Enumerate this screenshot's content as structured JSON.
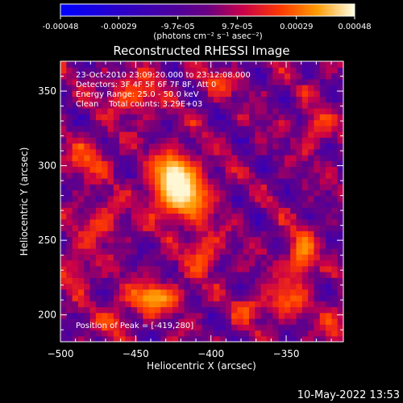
{
  "colorbar": {
    "tick_labels": [
      "-0.00048",
      "-0.00029",
      "-9.7e-05",
      "9.7e-05",
      "0.00029",
      "0.00048"
    ],
    "tick_values": [
      -0.00048,
      -0.00029,
      -9.7e-05,
      9.7e-05,
      0.00029,
      0.00048
    ],
    "range": [
      -0.00048,
      0.00048
    ],
    "unit_label": "(photons cm⁻² s⁻¹ asec⁻²)"
  },
  "chart_data": {
    "type": "heatmap",
    "title": "Reconstructed RHESSI Image",
    "xlabel": "Heliocentric X (arcsec)",
    "ylabel": "Heliocentric Y (arcsec)",
    "xlim": [
      -500,
      -312
    ],
    "ylim": [
      182,
      370
    ],
    "xticks": [
      -500,
      -450,
      -400,
      -350
    ],
    "yticks": [
      200,
      250,
      300,
      350
    ],
    "value_range": [
      -0.00048,
      0.00048
    ],
    "peak": {
      "x": -419,
      "y": 280
    },
    "sources": [
      {
        "x": -420,
        "y": 282,
        "sx": 14,
        "sy": 13,
        "amp": 1.0
      },
      {
        "x": -426,
        "y": 300,
        "sx": 9,
        "sy": 9,
        "amp": 0.55
      },
      {
        "x": -438,
        "y": 212,
        "sx": 14,
        "sy": 7,
        "amp": 0.8
      },
      {
        "x": -452,
        "y": 348,
        "sx": 13,
        "sy": 10,
        "amp": 0.55
      },
      {
        "x": -483,
        "y": 305,
        "sx": 10,
        "sy": 9,
        "amp": 0.5
      },
      {
        "x": -472,
        "y": 262,
        "sx": 10,
        "sy": 10,
        "amp": 0.45
      },
      {
        "x": -340,
        "y": 240,
        "sx": 7,
        "sy": 12,
        "amp": 0.7
      },
      {
        "x": -350,
        "y": 210,
        "sx": 9,
        "sy": 8,
        "amp": 0.55
      },
      {
        "x": -395,
        "y": 356,
        "sx": 8,
        "sy": 6,
        "amp": 0.5
      },
      {
        "x": -330,
        "y": 325,
        "sx": 7,
        "sy": 8,
        "amp": 0.5
      },
      {
        "x": -375,
        "y": 205,
        "sx": 8,
        "sy": 6,
        "amp": 0.45
      },
      {
        "x": -405,
        "y": 242,
        "sx": 8,
        "sy": 10,
        "amp": 0.55
      },
      {
        "x": -318,
        "y": 195,
        "sx": 6,
        "sy": 10,
        "amp": 0.4
      },
      {
        "x": -465,
        "y": 195,
        "sx": 8,
        "sy": 6,
        "amp": 0.45
      },
      {
        "x": -490,
        "y": 230,
        "sx": 8,
        "sy": 10,
        "amp": 0.4
      }
    ],
    "info_lines": [
      "23-Oct-2010 23:09:20.000 to 23:12:08.000",
      "Detectors: 3F 4F 5F 6F 7F 8F, Att 0",
      "Energy Range: 25.0 - 50.0 keV",
      "Clean    Total counts: 3.29E+03"
    ],
    "peak_label": "Position of Peak = [-419,280]"
  },
  "timestamp": "10-May-2022 13:53"
}
